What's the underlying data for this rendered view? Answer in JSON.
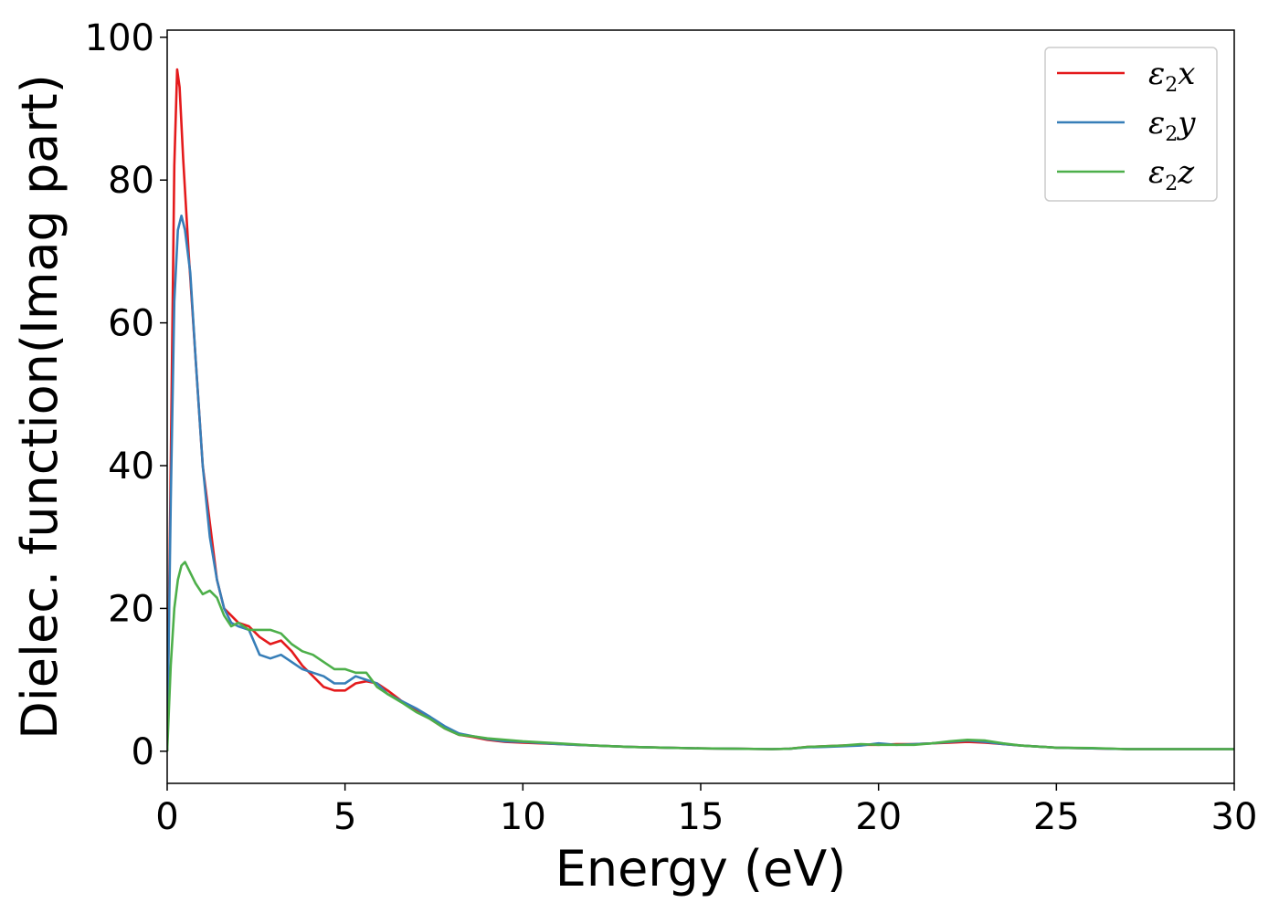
{
  "chart_data": {
    "type": "line",
    "title": "",
    "xlabel": "Energy (eV)",
    "ylabel": "Dielec. function(Imag part)",
    "xlim": [
      0,
      30
    ],
    "ylim": [
      -4.5,
      101
    ],
    "xticks": [
      0,
      5,
      10,
      15,
      20,
      25,
      30
    ],
    "yticks": [
      0,
      20,
      40,
      60,
      80,
      100
    ],
    "grid": false,
    "legend_position": "top-right",
    "series": [
      {
        "name": "ε2x",
        "legend_base": "ε",
        "legend_sub": "2",
        "legend_tail": "x",
        "color": "#e41a1c",
        "x": [
          0,
          0.1,
          0.2,
          0.28,
          0.35,
          0.45,
          0.6,
          0.8,
          1.0,
          1.2,
          1.4,
          1.6,
          1.8,
          2.0,
          2.3,
          2.6,
          2.9,
          3.2,
          3.5,
          3.8,
          4.1,
          4.4,
          4.7,
          5.0,
          5.3,
          5.6,
          5.9,
          6.2,
          6.6,
          7.0,
          7.4,
          7.8,
          8.2,
          8.6,
          9.0,
          9.5,
          10,
          11,
          12,
          13,
          14,
          15,
          16,
          17,
          17.5,
          18,
          18.5,
          19,
          19.5,
          20,
          20.5,
          21,
          21.5,
          22,
          22.5,
          23,
          23.5,
          24,
          25,
          26,
          27,
          28,
          29,
          30
        ],
        "y": [
          0,
          40,
          82,
          95.5,
          93,
          83,
          70,
          55,
          40,
          32,
          24,
          20,
          19,
          18,
          17.5,
          16,
          15,
          15.5,
          14,
          12,
          10.5,
          9,
          8.5,
          8.5,
          9.5,
          9.8,
          9.5,
          8.5,
          7,
          5.8,
          4.5,
          3.2,
          2.3,
          2.0,
          1.6,
          1.3,
          1.2,
          1.0,
          0.8,
          0.6,
          0.5,
          0.4,
          0.35,
          0.3,
          0.35,
          0.6,
          0.7,
          0.8,
          0.9,
          0.9,
          1.0,
          1.0,
          1.1,
          1.2,
          1.3,
          1.2,
          1.0,
          0.8,
          0.5,
          0.4,
          0.3,
          0.3,
          0.3,
          0.3
        ]
      },
      {
        "name": "ε2y",
        "legend_base": "ε",
        "legend_sub": "2",
        "legend_tail": "y",
        "color": "#377eb8",
        "x": [
          0,
          0.1,
          0.2,
          0.3,
          0.4,
          0.5,
          0.65,
          0.8,
          1.0,
          1.2,
          1.4,
          1.6,
          1.8,
          2.0,
          2.3,
          2.6,
          2.9,
          3.2,
          3.5,
          3.8,
          4.1,
          4.4,
          4.7,
          5.0,
          5.3,
          5.6,
          5.9,
          6.2,
          6.6,
          7.0,
          7.4,
          7.8,
          8.2,
          8.6,
          9.0,
          9.5,
          10,
          11,
          12,
          13,
          14,
          15,
          16,
          17,
          17.5,
          18,
          18.5,
          19,
          19.5,
          20,
          20.5,
          21,
          21.5,
          22,
          22.5,
          23,
          23.5,
          24,
          25,
          26,
          27,
          28,
          29,
          30
        ],
        "y": [
          0,
          35,
          63,
          73,
          75,
          73,
          67,
          55,
          40,
          30,
          24,
          20,
          18,
          17.5,
          17,
          13.5,
          13,
          13.5,
          12.5,
          11.5,
          11,
          10.5,
          9.5,
          9.5,
          10.5,
          10,
          9.5,
          8,
          7,
          6,
          4.8,
          3.5,
          2.5,
          2.1,
          1.7,
          1.4,
          1.3,
          1.0,
          0.8,
          0.6,
          0.5,
          0.4,
          0.35,
          0.3,
          0.35,
          0.55,
          0.6,
          0.7,
          0.8,
          1.1,
          0.9,
          1.0,
          1.1,
          1.3,
          1.5,
          1.3,
          1.0,
          0.8,
          0.5,
          0.4,
          0.3,
          0.3,
          0.3,
          0.3
        ]
      },
      {
        "name": "ε2z",
        "legend_base": "ε",
        "legend_sub": "2",
        "legend_tail": "z",
        "color": "#4daf4a",
        "x": [
          0,
          0.1,
          0.2,
          0.3,
          0.4,
          0.5,
          0.65,
          0.8,
          1.0,
          1.2,
          1.4,
          1.6,
          1.8,
          2.0,
          2.3,
          2.6,
          2.9,
          3.2,
          3.5,
          3.8,
          4.1,
          4.4,
          4.7,
          5.0,
          5.3,
          5.6,
          5.9,
          6.2,
          6.6,
          7.0,
          7.4,
          7.8,
          8.2,
          8.6,
          9.0,
          9.5,
          10,
          11,
          12,
          13,
          14,
          15,
          16,
          17,
          17.5,
          18,
          18.5,
          19,
          19.5,
          20,
          20.5,
          21,
          21.5,
          22,
          22.5,
          23,
          23.5,
          24,
          25,
          26,
          27,
          28,
          29,
          30
        ],
        "y": [
          0,
          12,
          20,
          24,
          26,
          26.5,
          25,
          23.5,
          22,
          22.5,
          21.5,
          19,
          17.5,
          18,
          17,
          17,
          17,
          16.5,
          15,
          14,
          13.5,
          12.5,
          11.5,
          11.5,
          11,
          11,
          9,
          8,
          6.8,
          5.5,
          4.5,
          3.2,
          2.3,
          2.1,
          1.8,
          1.6,
          1.4,
          1.1,
          0.8,
          0.6,
          0.5,
          0.4,
          0.35,
          0.3,
          0.35,
          0.6,
          0.7,
          0.8,
          1.0,
          0.9,
          0.9,
          0.9,
          1.1,
          1.4,
          1.6,
          1.5,
          1.1,
          0.8,
          0.5,
          0.45,
          0.3,
          0.3,
          0.3,
          0.3
        ]
      }
    ]
  }
}
